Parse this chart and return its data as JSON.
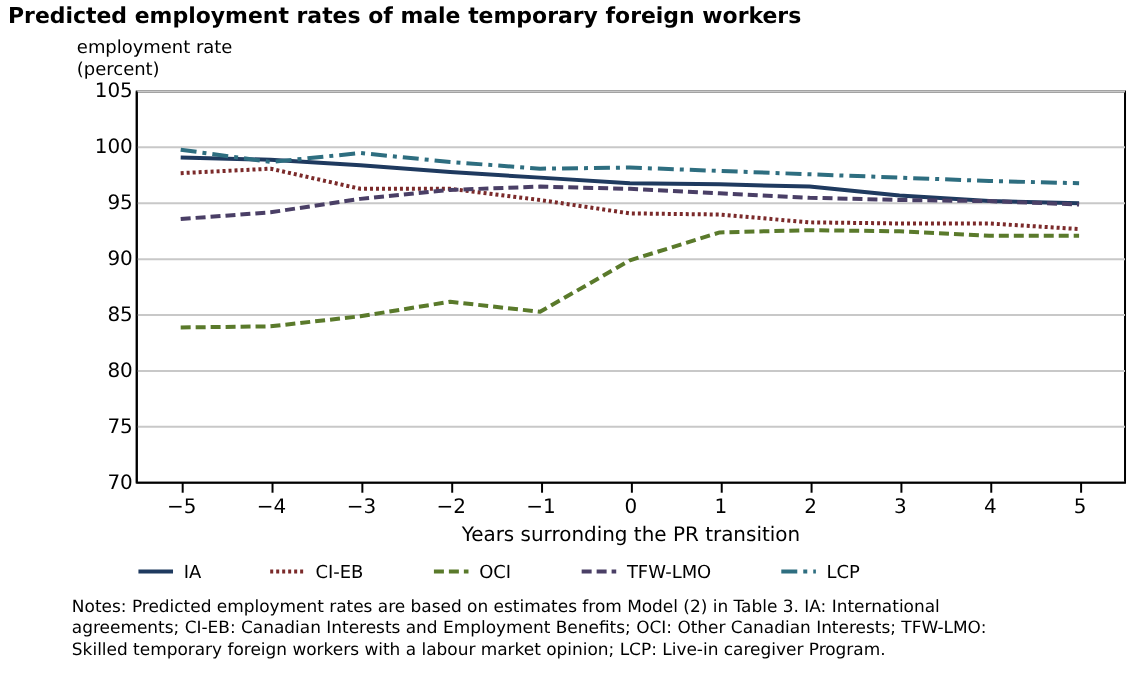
{
  "chart_data": {
    "type": "line",
    "title": "Predicted employment rates of male temporary foreign workers",
    "ylabel": "employment rate\n(percent)",
    "xlabel": "Years surronding the PR transition",
    "x": [
      -5,
      -4,
      -3,
      -2,
      -1,
      0,
      1,
      2,
      3,
      4,
      5
    ],
    "xlim": [
      -5.5,
      5.5
    ],
    "xticks": [
      -5,
      -4,
      -3,
      -2,
      -1,
      0,
      1,
      2,
      3,
      4,
      5
    ],
    "ylim": [
      70,
      105
    ],
    "yticks": [
      70,
      75,
      80,
      85,
      90,
      95,
      100,
      105
    ],
    "grid": "y",
    "legend": "bottom",
    "marker": "none",
    "series": [
      {
        "name": "IA",
        "color": "#1f3a5f",
        "line_style": "solid",
        "values": [
          99.0,
          98.8,
          98.3,
          97.7,
          97.2,
          96.7,
          96.6,
          96.4,
          95.6,
          95.1,
          94.9
        ]
      },
      {
        "name": "CI-EB",
        "color": "#7b2a2a",
        "line_style": "dotted",
        "values": [
          97.6,
          98.0,
          96.2,
          96.2,
          95.2,
          94.0,
          93.9,
          93.2,
          93.1,
          93.1,
          92.6
        ]
      },
      {
        "name": "OCI",
        "color": "#5a7a2b",
        "line_style": "dashed",
        "values": [
          83.8,
          83.9,
          84.8,
          86.1,
          85.2,
          89.8,
          92.3,
          92.5,
          92.4,
          92.0,
          92.0
        ]
      },
      {
        "name": "TFW-LMO",
        "color": "#4a3f66",
        "line_style": "dashed",
        "values": [
          93.5,
          94.1,
          95.3,
          96.1,
          96.4,
          96.2,
          95.8,
          95.4,
          95.2,
          95.1,
          94.8
        ]
      },
      {
        "name": "LCP",
        "color": "#2e6e80",
        "line_style": "dashdot",
        "values": [
          99.7,
          98.6,
          99.4,
          98.6,
          98.0,
          98.1,
          97.8,
          97.5,
          97.2,
          96.9,
          96.7
        ]
      }
    ],
    "annotations": [
      "Notes: Predicted employment rates are based on estimates from Model (2) in Table 3. IA: International\nagreements; CI-EB: Canadian Interests and Employment Benefits; OCI: Other Canadian Interests; TFW-LMO:\nSkilled temporary foreign workers with a labour market opinion; LCP: Live-in caregiver Program."
    ]
  }
}
